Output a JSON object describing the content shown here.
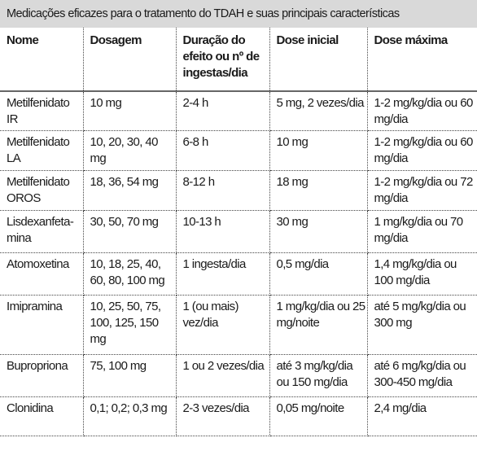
{
  "caption": "Medicações eficazes para o tratamento do TDAH e suas principais características",
  "headers": {
    "nome": "Nome",
    "dosagem": "Dosagem",
    "duracao": "Duração do efeito ou nº de ingestas/dia",
    "dose_inicial": "Dose inicial",
    "dose_maxima": "Dose máxima"
  },
  "rows": [
    {
      "nome": "Metilfenidato IR",
      "dosagem": "10 mg",
      "duracao": "2-4 h",
      "dose_inicial": "5 mg, 2 vezes/dia",
      "dose_maxima": "1-2 mg/kg/dia ou 60 mg/dia"
    },
    {
      "nome": "Metilfenidato LA",
      "dosagem": "10, 20, 30, 40 mg",
      "duracao": "6-8 h",
      "dose_inicial": "10 mg",
      "dose_maxima": "1-2 mg/kg/dia ou 60 mg/dia"
    },
    {
      "nome": "Metilfenidato OROS",
      "dosagem": "18, 36, 54 mg",
      "duracao": "8-12 h",
      "dose_inicial": "18 mg",
      "dose_maxima": "1-2 mg/kg/dia ou 72 mg/dia"
    },
    {
      "nome": "Lisdexanfeta-mina",
      "dosagem": "30, 50, 70 mg",
      "duracao": "10-13 h",
      "dose_inicial": "30 mg",
      "dose_maxima": "1 mg/kg/dia ou 70 mg/dia"
    },
    {
      "nome": "Atomoxetina",
      "dosagem": "10, 18, 25, 40, 60, 80, 100 mg",
      "duracao": "1 ingesta/dia",
      "dose_inicial": "0,5 mg/dia",
      "dose_maxima": "1,4 mg/kg/dia ou 100 mg/dia"
    },
    {
      "nome": "Imipramina",
      "dosagem": "10, 25, 50, 75, 100, 125, 150 mg",
      "duracao": "1 (ou mais) vez/dia",
      "dose_inicial": "1 mg/kg/dia ou 25 mg/noite",
      "dose_maxima": "até 5 mg/kg/dia ou 300 mg"
    },
    {
      "nome": "Bupropriona",
      "dosagem": "75, 100 mg",
      "duracao": "1 ou 2 vezes/dia",
      "dose_inicial": "até 3 mg/kg/dia ou 150 mg/dia",
      "dose_maxima": "até 6 mg/kg/dia ou 300-450 mg/dia"
    },
    {
      "nome": "Clonidina",
      "dosagem": "0,1; 0,2; 0,3 mg",
      "duracao": "2-3 vezes/dia",
      "dose_inicial": "0,05 mg/noite",
      "dose_maxima": "2,4 mg/dia"
    }
  ]
}
